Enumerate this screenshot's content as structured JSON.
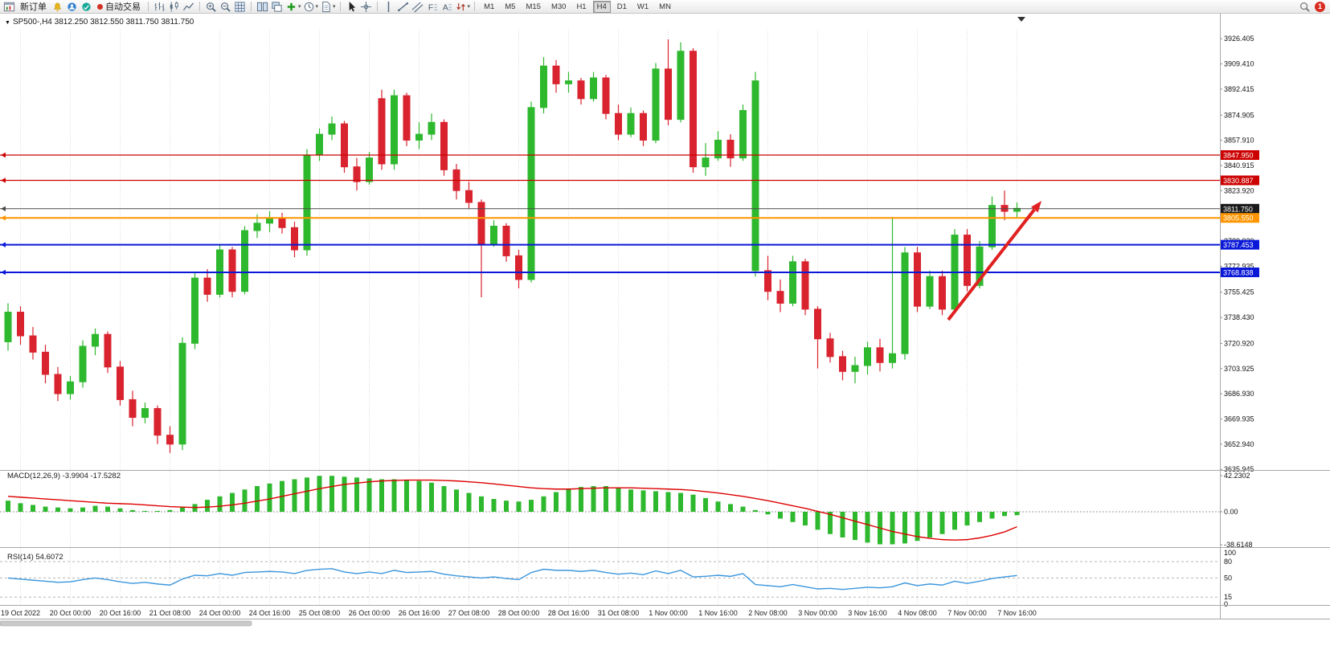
{
  "toolbar": {
    "new_order_label": "新订单",
    "autotrade_label": "自动交易",
    "timeframes": [
      "M1",
      "M5",
      "M15",
      "M30",
      "H1",
      "H4",
      "D1",
      "W1",
      "MN"
    ],
    "active_timeframe": "H4",
    "notification_badge": "1",
    "items": [
      {
        "type": "icon",
        "name": "new-chart-icon"
      },
      {
        "type": "button",
        "name": "new-order-button",
        "label": "新订单"
      },
      {
        "type": "icon",
        "name": "alerts-icon"
      },
      {
        "type": "icon",
        "name": "community-icon"
      },
      {
        "type": "icon",
        "name": "market-watch-icon"
      },
      {
        "type": "button",
        "name": "autotrade-button",
        "label": "自动交易",
        "led": "#d43023"
      },
      {
        "type": "sep"
      },
      {
        "type": "icon",
        "name": "bar-chart-icon"
      },
      {
        "type": "icon",
        "name": "candlestick-chart-icon"
      },
      {
        "type": "icon",
        "name": "line-chart-icon"
      },
      {
        "type": "sep"
      },
      {
        "type": "icon",
        "name": "zoom-in-icon"
      },
      {
        "type": "icon",
        "name": "zoom-out-icon"
      },
      {
        "type": "icon",
        "name": "grid-icon"
      },
      {
        "type": "sep"
      },
      {
        "type": "icon",
        "name": "tile-windows-icon"
      },
      {
        "type": "icon",
        "name": "cascade-windows-icon"
      },
      {
        "type": "icon",
        "name": "indicators-add-icon",
        "caret": true
      },
      {
        "type": "icon",
        "name": "period-clock-icon",
        "caret": true
      },
      {
        "type": "icon",
        "name": "templates-icon",
        "caret": true
      },
      {
        "type": "sep"
      },
      {
        "type": "icon",
        "name": "cursor-icon"
      },
      {
        "type": "icon",
        "name": "crosshair-icon"
      },
      {
        "type": "sep"
      },
      {
        "type": "icon",
        "name": "vertical-line-icon"
      },
      {
        "type": "icon",
        "name": "trendline-icon"
      },
      {
        "type": "icon",
        "name": "channel-icon"
      },
      {
        "type": "icon",
        "name": "fibonacci-icon",
        "glyph": "F"
      },
      {
        "type": "icon",
        "name": "text-label-icon",
        "glyph": "A"
      },
      {
        "type": "icon",
        "name": "arrow-objects-icon",
        "caret": true
      },
      {
        "type": "sep"
      },
      {
        "type": "timeframes"
      },
      {
        "type": "spacer"
      },
      {
        "type": "icon",
        "name": "search-icon"
      },
      {
        "type": "badge",
        "name": "notification-badge",
        "label": "1"
      }
    ]
  },
  "chart": {
    "symbol_info": "SP500-,H4 3812.250 3812.550 3811.750 3811.750",
    "price_axis_labels": [
      {
        "p": 3926.405,
        "t": "3926.405"
      },
      {
        "p": 3909.41,
        "t": "3909.410"
      },
      {
        "p": 3892.415,
        "t": "3892.415"
      },
      {
        "p": 3874.905,
        "t": "3874.905"
      },
      {
        "p": 3857.91,
        "t": "3857.910"
      },
      {
        "p": 3840.915,
        "t": "3840.915"
      },
      {
        "p": 3823.92,
        "t": "3823.920"
      },
      {
        "p": 3806.925,
        "t": "3806.925"
      },
      {
        "p": 3789.93,
        "t": "3789.930"
      },
      {
        "p": 3772.935,
        "t": "3772.935"
      },
      {
        "p": 3755.425,
        "t": "3755.425"
      },
      {
        "p": 3738.43,
        "t": "3738.430"
      },
      {
        "p": 3720.92,
        "t": "3720.920"
      },
      {
        "p": 3703.925,
        "t": "3703.925"
      },
      {
        "p": 3686.93,
        "t": "3686.930"
      },
      {
        "p": 3669.935,
        "t": "3669.935"
      },
      {
        "p": 3652.94,
        "t": "3652.940"
      },
      {
        "p": 3635.945,
        "t": "3635.945"
      }
    ],
    "hlines": [
      {
        "price": 3847.95,
        "label": "3847.950",
        "color": "#cc0000",
        "width": 1.2
      },
      {
        "price": 3830.887,
        "label": "3830.887",
        "color": "#cc0000",
        "width": 1.2
      },
      {
        "price": 3811.75,
        "label": "3811.750",
        "color": "#4a4a4a",
        "width": 1,
        "tag_bg": "#1a1a1a"
      },
      {
        "price": 3805.55,
        "label": "3805.550",
        "color": "#ff9500",
        "width": 2
      },
      {
        "price": 3787.453,
        "label": "3787.453",
        "color": "#0a18d8",
        "width": 2
      },
      {
        "price": 3768.838,
        "label": "3768.838",
        "color": "#0a18d8",
        "width": 2
      }
    ],
    "time_axis_labels": [
      {
        "i": 1,
        "t": "19 Oct 2022"
      },
      {
        "i": 5,
        "t": "20 Oct 00:00"
      },
      {
        "i": 9,
        "t": "20 Oct 16:00"
      },
      {
        "i": 13,
        "t": "21 Oct 08:00"
      },
      {
        "i": 17,
        "t": "24 Oct 00:00"
      },
      {
        "i": 21,
        "t": "24 Oct 16:00"
      },
      {
        "i": 25,
        "t": "25 Oct 08:00"
      },
      {
        "i": 29,
        "t": "26 Oct 00:00"
      },
      {
        "i": 33,
        "t": "26 Oct 16:00"
      },
      {
        "i": 37,
        "t": "27 Oct 08:00"
      },
      {
        "i": 41,
        "t": "28 Oct 00:00"
      },
      {
        "i": 45,
        "t": "28 Oct 16:00"
      },
      {
        "i": 49,
        "t": "31 Oct 08:00"
      },
      {
        "i": 53,
        "t": "1 Nov 00:00"
      },
      {
        "i": 57,
        "t": "1 Nov 16:00"
      },
      {
        "i": 61,
        "t": "2 Nov 08:00"
      },
      {
        "i": 65,
        "t": "3 Nov 00:00"
      },
      {
        "i": 69,
        "t": "3 Nov 16:00"
      },
      {
        "i": 73,
        "t": "4 Nov 08:00"
      },
      {
        "i": 77,
        "t": "7 Nov 00:00"
      },
      {
        "i": 81,
        "t": "7 Nov 16:00"
      }
    ],
    "arrow_color": "#e02020"
  },
  "chart_data": {
    "type": "candlestick",
    "symbol": "SP500-",
    "period": "H4",
    "ohlc_current": {
      "open": "3812.250",
      "high": "3812.550",
      "low": "3811.750",
      "close": "3811.750"
    },
    "colors": {
      "up": "#2eb82e",
      "down": "#d9232e",
      "macd_hist": "#2eb82e",
      "macd_signal": "#dd0000",
      "rsi_line": "#3a96dd"
    },
    "price_range": [
      3635.945,
      3926.405
    ],
    "candles": [
      [
        3722,
        3748,
        3716,
        3742
      ],
      [
        3742,
        3746,
        3720,
        3726
      ],
      [
        3726,
        3732,
        3710,
        3715
      ],
      [
        3715,
        3720,
        3694,
        3700
      ],
      [
        3700,
        3705,
        3682,
        3687
      ],
      [
        3687,
        3699,
        3683,
        3695
      ],
      [
        3695,
        3723,
        3691,
        3719
      ],
      [
        3719,
        3731,
        3713,
        3727
      ],
      [
        3727,
        3729,
        3701,
        3705
      ],
      [
        3705,
        3709,
        3679,
        3683
      ],
      [
        3683,
        3689,
        3665,
        3671
      ],
      [
        3671,
        3681,
        3667,
        3677
      ],
      [
        3677,
        3679,
        3653,
        3659
      ],
      [
        3659,
        3665,
        3647,
        3653
      ],
      [
        3653,
        3725,
        3649,
        3721
      ],
      [
        3721,
        3769,
        3717,
        3765
      ],
      [
        3765,
        3771,
        3749,
        3754
      ],
      [
        3754,
        3788,
        3752,
        3784
      ],
      [
        3784,
        3786,
        3752,
        3756
      ],
      [
        3756,
        3800,
        3754,
        3797
      ],
      [
        3797,
        3808,
        3792,
        3802
      ],
      [
        3802,
        3810,
        3796,
        3805
      ],
      [
        3805,
        3809,
        3795,
        3799
      ],
      [
        3799,
        3803,
        3779,
        3784
      ],
      [
        3784,
        3852,
        3780,
        3848
      ],
      [
        3848,
        3866,
        3844,
        3862
      ],
      [
        3862,
        3874,
        3858,
        3869
      ],
      [
        3869,
        3871,
        3836,
        3840
      ],
      [
        3840,
        3846,
        3824,
        3830
      ],
      [
        3830,
        3850,
        3828,
        3846
      ],
      [
        3886,
        3892,
        3838,
        3842
      ],
      [
        3842,
        3892,
        3838,
        3888
      ],
      [
        3888,
        3890,
        3854,
        3858
      ],
      [
        3858,
        3870,
        3852,
        3862
      ],
      [
        3862,
        3876,
        3858,
        3870
      ],
      [
        3870,
        3872,
        3834,
        3838
      ],
      [
        3838,
        3842,
        3818,
        3824
      ],
      [
        3824,
        3830,
        3812,
        3816
      ],
      [
        3816,
        3818,
        3752,
        3788
      ],
      [
        3788,
        3804,
        3786,
        3800
      ],
      [
        3800,
        3802,
        3776,
        3780
      ],
      [
        3780,
        3784,
        3758,
        3764
      ],
      [
        3764,
        3884,
        3762,
        3880
      ],
      [
        3880,
        3914,
        3876,
        3908
      ],
      [
        3908,
        3912,
        3890,
        3896
      ],
      [
        3896,
        3904,
        3890,
        3898
      ],
      [
        3898,
        3900,
        3882,
        3886
      ],
      [
        3886,
        3904,
        3884,
        3900
      ],
      [
        3900,
        3902,
        3872,
        3876
      ],
      [
        3876,
        3882,
        3858,
        3862
      ],
      [
        3862,
        3880,
        3860,
        3876
      ],
      [
        3876,
        3878,
        3854,
        3858
      ],
      [
        3858,
        3910,
        3856,
        3906
      ],
      [
        3906,
        3926,
        3868,
        3872
      ],
      [
        3872,
        3924,
        3870,
        3918
      ],
      [
        3918,
        3920,
        3836,
        3840
      ],
      [
        3840,
        3856,
        3834,
        3846
      ],
      [
        3846,
        3864,
        3844,
        3858
      ],
      [
        3858,
        3862,
        3840,
        3846
      ],
      [
        3846,
        3882,
        3844,
        3878
      ],
      [
        3898,
        3904,
        3766,
        3770
      ],
      [
        3770,
        3780,
        3750,
        3756
      ],
      [
        3756,
        3764,
        3742,
        3748
      ],
      [
        3748,
        3780,
        3746,
        3776
      ],
      [
        3776,
        3778,
        3740,
        3744
      ],
      [
        3744,
        3746,
        3704,
        3724
      ],
      [
        3724,
        3728,
        3708,
        3712
      ],
      [
        3712,
        3716,
        3696,
        3702
      ],
      [
        3702,
        3712,
        3694,
        3706
      ],
      [
        3706,
        3722,
        3700,
        3718
      ],
      [
        3718,
        3724,
        3702,
        3708
      ],
      [
        3708,
        3806,
        3704,
        3714
      ],
      [
        3714,
        3786,
        3710,
        3782
      ],
      [
        3782,
        3786,
        3742,
        3746
      ],
      [
        3746,
        3770,
        3744,
        3766
      ],
      [
        3766,
        3770,
        3740,
        3744
      ],
      [
        3744,
        3798,
        3742,
        3794
      ],
      [
        3794,
        3798,
        3756,
        3760
      ],
      [
        3760,
        3790,
        3758,
        3786
      ],
      [
        3786,
        3820,
        3784,
        3814
      ],
      [
        3814,
        3824,
        3804,
        3810
      ],
      [
        3810,
        3816,
        3806,
        3812
      ]
    ],
    "color_overrides": {
      "60": "up"
    },
    "macd": {
      "display": "MACD(12,26,9) -3.9904 -17.5282",
      "axis_labels": [
        "42.2302",
        "0.00",
        "-38.6148"
      ],
      "histogram": [
        13,
        10,
        8,
        6,
        5,
        4,
        5,
        7,
        6,
        4,
        2,
        1,
        1,
        2,
        5,
        9,
        14,
        18,
        22,
        26,
        30,
        33,
        36,
        38,
        40,
        42,
        42,
        41,
        40,
        39,
        38,
        38,
        37,
        36,
        34,
        30,
        26,
        22,
        18,
        15,
        13,
        12,
        14,
        18,
        23,
        27,
        29,
        30,
        30,
        28,
        26,
        25,
        24,
        23,
        22,
        20,
        16,
        12,
        9,
        6,
        2,
        -3,
        -8,
        -12,
        -16,
        -21,
        -26,
        -30,
        -33,
        -36,
        -38,
        -38,
        -37,
        -34,
        -30,
        -26,
        -21,
        -16,
        -12,
        -8,
        -5,
        -4
      ],
      "signal": [
        18,
        17,
        16,
        15,
        14,
        13,
        12,
        11,
        10,
        9.5,
        9,
        8,
        7,
        6,
        5.5,
        5,
        5.5,
        6.5,
        8,
        10,
        12.5,
        15,
        18,
        21,
        24,
        27,
        29.5,
        32,
        33.5,
        35,
        36,
        36.5,
        37,
        37,
        37,
        36.5,
        36,
        35,
        34,
        32.5,
        31,
        29.5,
        28,
        27,
        26.5,
        26.5,
        27,
        27.5,
        28,
        28,
        28,
        27.5,
        27,
        26.5,
        26,
        25,
        23.5,
        22,
        20,
        18,
        15.5,
        13,
        10,
        7,
        4,
        0.5,
        -3,
        -7,
        -11,
        -15,
        -19,
        -23,
        -26,
        -29,
        -31,
        -32.5,
        -33,
        -32.5,
        -30.5,
        -27.5,
        -23.5,
        -17.5
      ]
    },
    "rsi": {
      "display": "RSI(14) 54.6072",
      "axis_labels": [
        "100",
        "80",
        "50",
        "15",
        "0"
      ],
      "levels": [
        80,
        50,
        15
      ],
      "values": [
        50,
        48,
        46,
        44,
        42,
        43,
        47,
        50,
        47,
        43,
        40,
        42,
        39,
        37,
        48,
        55,
        54,
        58,
        55,
        60,
        61,
        62,
        61,
        58,
        64,
        66,
        67,
        61,
        58,
        61,
        58,
        64,
        60,
        61,
        62,
        57,
        54,
        52,
        50,
        52,
        49,
        47,
        60,
        66,
        64,
        64,
        62,
        64,
        60,
        57,
        59,
        56,
        63,
        58,
        64,
        52,
        53,
        55,
        53,
        58,
        38,
        36,
        34,
        38,
        34,
        30,
        31,
        29,
        31,
        33,
        32,
        34,
        41,
        36,
        39,
        37,
        44,
        40,
        44,
        49,
        52,
        54.6
      ]
    }
  }
}
